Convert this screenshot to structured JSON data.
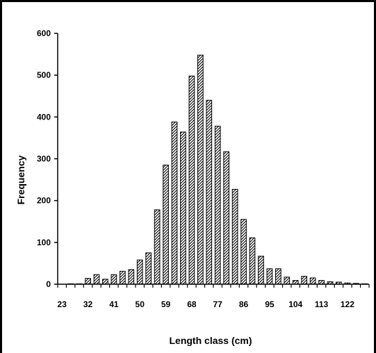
{
  "chart_data": {
    "type": "bar",
    "title": "",
    "xlabel": "Length class (cm)",
    "ylabel": "Frequency",
    "ylim": [
      0,
      600
    ],
    "yticks": [
      "0",
      "100",
      "200",
      "300",
      "400",
      "500",
      "600"
    ],
    "xtick_labels": [
      "23",
      "32",
      "41",
      "50",
      "59",
      "68",
      "77",
      "86",
      "95",
      "104",
      "113",
      "122"
    ],
    "categories": [
      23,
      26,
      29,
      32,
      35,
      38,
      41,
      44,
      47,
      50,
      53,
      56,
      59,
      62,
      65,
      68,
      71,
      74,
      77,
      80,
      83,
      86,
      89,
      92,
      95,
      98,
      101,
      104,
      107,
      110,
      113,
      116,
      119,
      122,
      125,
      128
    ],
    "values": [
      0,
      1,
      1,
      14,
      23,
      12,
      23,
      31,
      35,
      58,
      75,
      178,
      285,
      388,
      364,
      498,
      548,
      440,
      378,
      317,
      227,
      155,
      111,
      67,
      37,
      37,
      17,
      9,
      19,
      15,
      9,
      6,
      5,
      3,
      2,
      1
    ],
    "grid": false,
    "legend": "none",
    "bar_fill": "diagonal-hatch",
    "colors": {
      "bar_stroke": "#000000",
      "hatch": "#000000",
      "background": "#ffffff"
    }
  }
}
